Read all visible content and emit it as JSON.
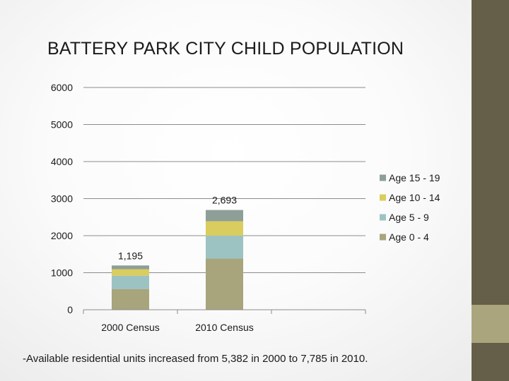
{
  "slide": {
    "title": "BATTERY PARK CITY CHILD POPULATION",
    "footnote": "-Available residential units increased from 5,382 in 2000 to 7,785 in 2010."
  },
  "colors": {
    "sidebar": "#655e49",
    "sidebar_accent": "#aaa57d",
    "gridline": "#8c8c8c"
  },
  "chart_data": {
    "type": "bar",
    "stacked": true,
    "title": "",
    "xlabel": "",
    "ylabel": "",
    "ylim": [
      0,
      6000
    ],
    "yticks": [
      0,
      1000,
      2000,
      3000,
      4000,
      5000,
      6000
    ],
    "grid": true,
    "categories": [
      "2000 Census",
      "2010 Census",
      ""
    ],
    "series": [
      {
        "name": "Age 0 - 4",
        "color": "#a8a47c",
        "values": [
          560,
          1380,
          null
        ]
      },
      {
        "name": "Age 5 - 9",
        "color": "#9cc3c2",
        "values": [
          360,
          620,
          null
        ]
      },
      {
        "name": "Age 10 - 14",
        "color": "#d9cd5f",
        "values": [
          175,
          390,
          null
        ]
      },
      {
        "name": "Age 15 - 19",
        "color": "#8e9f97",
        "values": [
          100,
          303,
          null
        ]
      }
    ],
    "totals": [
      "1,195",
      "2,693",
      ""
    ],
    "legend": {
      "position": "right",
      "order": [
        "Age 15 - 19",
        "Age 10 - 14",
        "Age 5 - 9",
        "Age 0 - 4"
      ]
    }
  }
}
